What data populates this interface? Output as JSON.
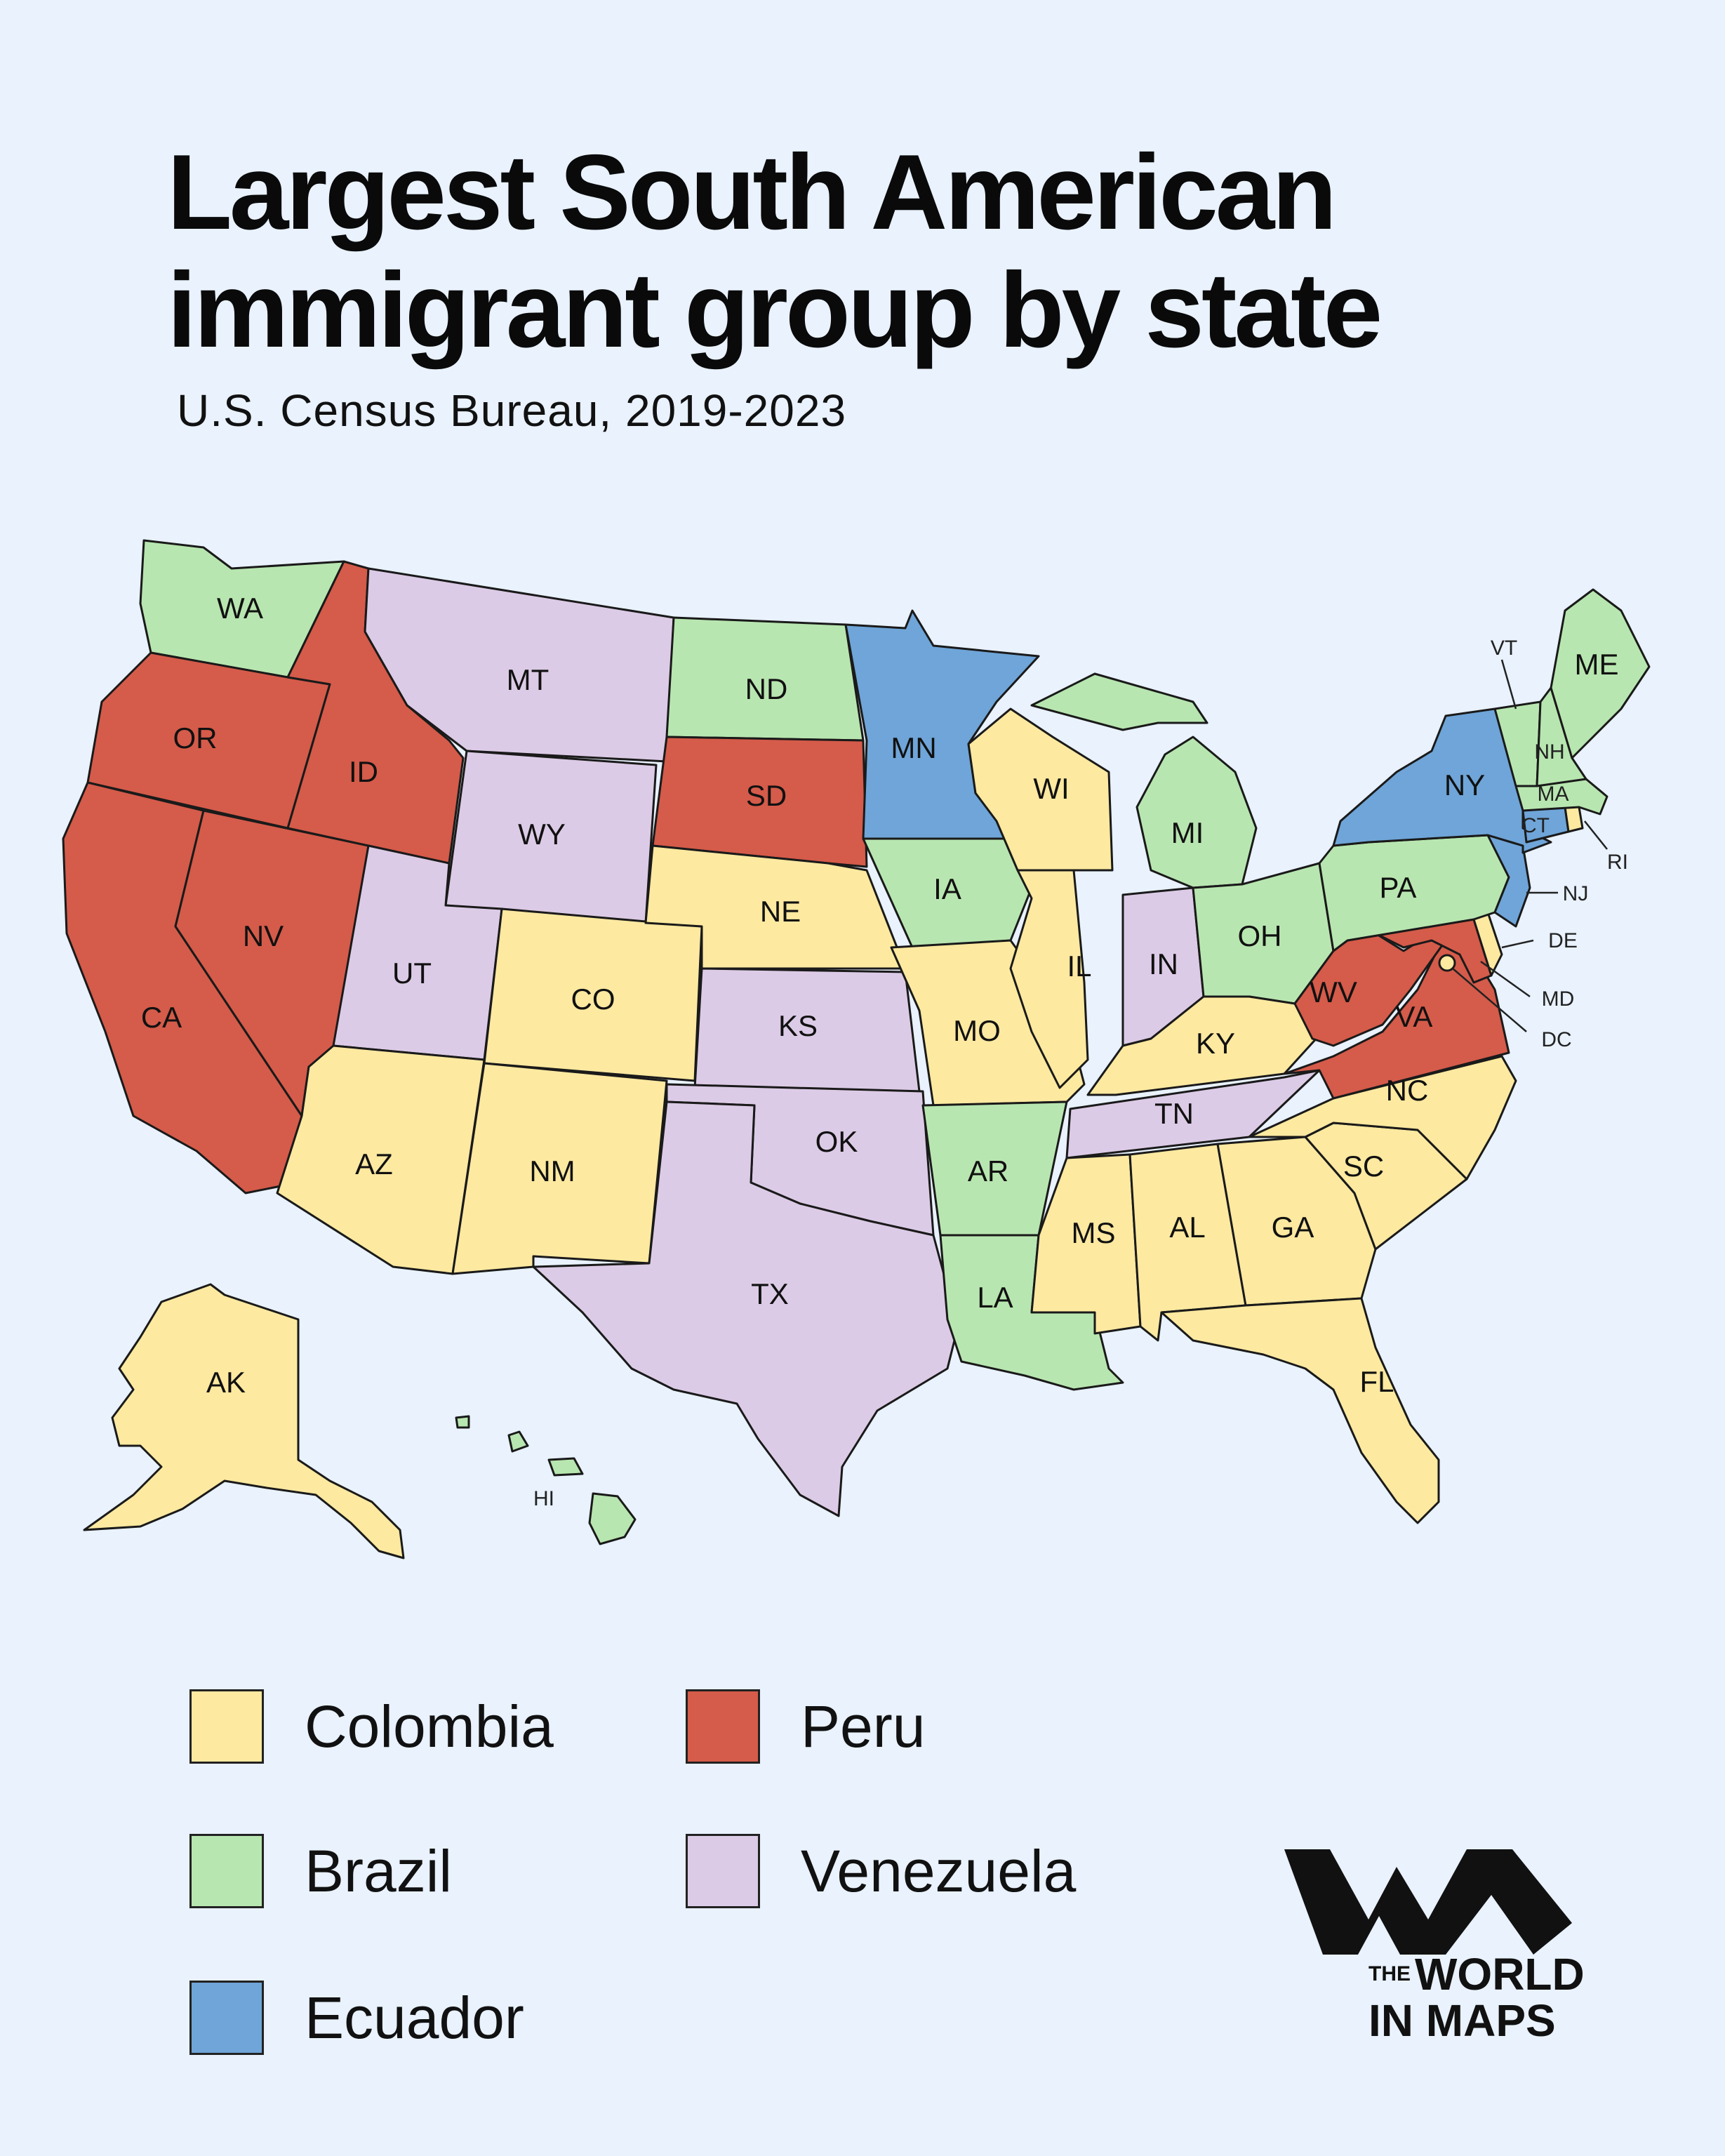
{
  "title_line1": "Largest South American",
  "title_line2": "immigrant group by state",
  "subtitle": "U.S. Census Bureau, 2019-2023",
  "colors": {
    "Colombia": "#fde9a0",
    "Brazil": "#b8e6b0",
    "Ecuador": "#6fa5d8",
    "Peru": "#d55b4a",
    "Venezuela": "#dccbe6"
  },
  "legend": [
    {
      "label": "Colombia",
      "color": "#fde9a0"
    },
    {
      "label": "Brazil",
      "color": "#b8e6b0"
    },
    {
      "label": "Ecuador",
      "color": "#6fa5d8"
    },
    {
      "label": "Peru",
      "color": "#d55b4a"
    },
    {
      "label": "Venezuela",
      "color": "#dccbe6"
    }
  ],
  "states": {
    "WA": "Brazil",
    "OR": "Peru",
    "CA": "Peru",
    "ID": "Peru",
    "NV": "Peru",
    "MT": "Venezuela",
    "WY": "Venezuela",
    "UT": "Venezuela",
    "CO": "Colombia",
    "AZ": "Colombia",
    "NM": "Colombia",
    "ND": "Brazil",
    "SD": "Peru",
    "NE": "Colombia",
    "KS": "Venezuela",
    "OK": "Venezuela",
    "TX": "Venezuela",
    "MN": "Ecuador",
    "IA": "Brazil",
    "MO": "Colombia",
    "AR": "Brazil",
    "LA": "Brazil",
    "WI": "Colombia",
    "IL": "Colombia",
    "IN": "Venezuela",
    "MI": "Brazil",
    "OH": "Brazil",
    "KY": "Colombia",
    "TN": "Venezuela",
    "MS": "Colombia",
    "AL": "Colombia",
    "GA": "Colombia",
    "FL": "Colombia",
    "SC": "Colombia",
    "NC": "Colombia",
    "VA": "Peru",
    "WV": "Peru",
    "MD": "Peru",
    "DE": "Colombia",
    "DC": "Colombia",
    "PA": "Brazil",
    "NJ": "Ecuador",
    "NY": "Ecuador",
    "CT": "Ecuador",
    "RI": "Colombia",
    "MA": "Brazil",
    "VT": "Brazil",
    "NH": "Brazil",
    "ME": "Brazil",
    "AK": "Colombia",
    "HI": "Brazil"
  },
  "logo_text_the": "THE",
  "logo_text_line1": "WORLD",
  "logo_text_line2": "IN MAPS"
}
